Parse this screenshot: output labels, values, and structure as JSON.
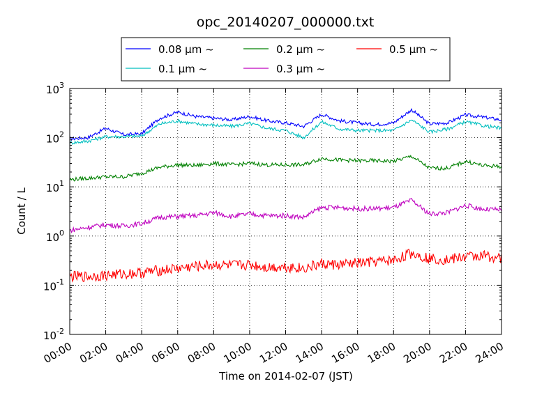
{
  "chart_data": {
    "type": "line",
    "title": "opc_20140207_000000.txt",
    "xlabel": "Time on 2014-02-07 (JST)",
    "ylabel": "Count / L",
    "x_range_hours": [
      0,
      24
    ],
    "x_ticks": [
      "00:00",
      "02:00",
      "04:00",
      "06:00",
      "08:00",
      "10:00",
      "12:00",
      "14:00",
      "16:00",
      "18:00",
      "20:00",
      "22:00",
      "24:00"
    ],
    "y_scale": "log",
    "ylim": [
      0.01,
      1000
    ],
    "y_ticks": [
      {
        "value": 0.01,
        "base": "10",
        "exp": "-2"
      },
      {
        "value": 0.1,
        "base": "10",
        "exp": "-1"
      },
      {
        "value": 1,
        "base": "10",
        "exp": "0"
      },
      {
        "value": 10,
        "base": "10",
        "exp": "1"
      },
      {
        "value": 100,
        "base": "10",
        "exp": "2"
      },
      {
        "value": 1000,
        "base": "10",
        "exp": "3"
      }
    ],
    "grid": true,
    "legend_position": "top-center",
    "x_hours": [
      0,
      1,
      2,
      3,
      4,
      5,
      6,
      7,
      8,
      9,
      10,
      11,
      12,
      13,
      14,
      15,
      16,
      17,
      18,
      19,
      20,
      21,
      22,
      23,
      24
    ],
    "series": [
      {
        "name": "0.08 μm ~",
        "color": "#0000ff",
        "values": [
          95,
          100,
          155,
          115,
          120,
          250,
          330,
          270,
          250,
          230,
          270,
          220,
          200,
          170,
          300,
          220,
          200,
          185,
          200,
          370,
          190,
          200,
          290,
          260,
          230
        ]
      },
      {
        "name": "0.1 μm ~",
        "color": "#00bfbf",
        "values": [
          78,
          85,
          105,
          105,
          108,
          190,
          220,
          190,
          180,
          170,
          195,
          155,
          140,
          100,
          210,
          150,
          140,
          140,
          140,
          230,
          130,
          150,
          210,
          175,
          155
        ]
      },
      {
        "name": "0.2 μm ~",
        "color": "#008000",
        "values": [
          14,
          15,
          16,
          16,
          19,
          25,
          28,
          27,
          30,
          28,
          30,
          28,
          28,
          28,
          38,
          35,
          34,
          34,
          33,
          42,
          24,
          24,
          33,
          27,
          26
        ]
      },
      {
        "name": "0.3 μm ~",
        "color": "#bf00bf",
        "values": [
          1.3,
          1.5,
          1.7,
          1.6,
          1.8,
          2.4,
          2.5,
          2.6,
          3.0,
          2.5,
          2.8,
          2.6,
          2.6,
          2.4,
          3.8,
          3.8,
          3.6,
          3.6,
          3.8,
          5.3,
          2.8,
          3.0,
          4.2,
          3.5,
          3.4
        ]
      },
      {
        "name": "0.5 μm ~",
        "color": "#ff0000",
        "values": [
          0.15,
          0.15,
          0.16,
          0.17,
          0.18,
          0.2,
          0.22,
          0.24,
          0.26,
          0.25,
          0.26,
          0.23,
          0.24,
          0.22,
          0.27,
          0.26,
          0.28,
          0.3,
          0.32,
          0.45,
          0.35,
          0.33,
          0.38,
          0.4,
          0.35
        ]
      }
    ]
  }
}
